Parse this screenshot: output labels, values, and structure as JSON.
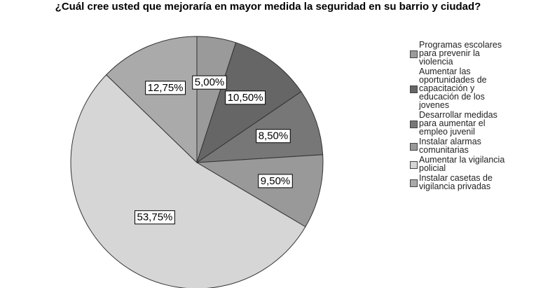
{
  "chart_data": {
    "type": "pie",
    "title": "¿Cuál cree usted que mejoraría en mayor medida la seguridad en su barrio y ciudad?",
    "categories": [
      "Programas escolares para prevenir la violencia",
      "Aumentar las oportunidades de capacitación y educación de los jovenes",
      "Desarrollar medidas para aumentar el empleo juvenil",
      "Instalar alarmas comunitarias",
      "Aumentar la vigilancia policial",
      "Instalar casetas de vigilancia privadas"
    ],
    "values": [
      5.0,
      10.5,
      8.5,
      9.5,
      53.75,
      12.75
    ],
    "value_labels": [
      "5,00%",
      "10,50%",
      "8,50%",
      "9,50%",
      "53,75%",
      "12,75%"
    ],
    "colors": [
      "#9a9a9a",
      "#666666",
      "#777777",
      "#999999",
      "#d6d6d6",
      "#aaaaaa"
    ],
    "legend": "right"
  }
}
